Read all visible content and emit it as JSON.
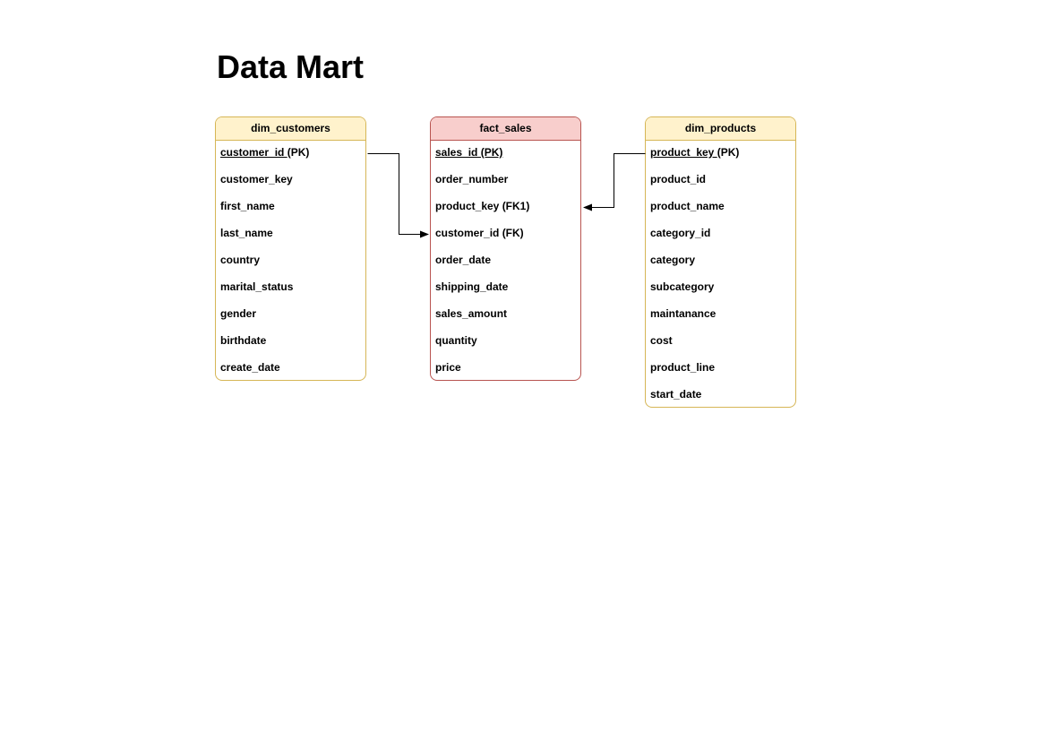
{
  "page": {
    "title": "Data Mart"
  },
  "tables": {
    "dim_customers": {
      "name": "dim_customers",
      "header_fill": "#fff2cc",
      "border_color": "#d6b656",
      "columns": [
        {
          "key": "customer_id ",
          "suffix": "(PK)"
        },
        {
          "key": "",
          "suffix": "customer_key"
        },
        {
          "key": "",
          "suffix": "first_name"
        },
        {
          "key": "",
          "suffix": "last_name"
        },
        {
          "key": "",
          "suffix": "country"
        },
        {
          "key": "",
          "suffix": "marital_status"
        },
        {
          "key": "",
          "suffix": "gender"
        },
        {
          "key": "",
          "suffix": "birthdate"
        },
        {
          "key": "",
          "suffix": "create_date"
        }
      ]
    },
    "fact_sales": {
      "name": "fact_sales",
      "header_fill": "#f8cecc",
      "border_color": "#b85450",
      "columns": [
        {
          "key": "sales_id (PK)",
          "suffix": ""
        },
        {
          "key": "",
          "suffix": "order_number"
        },
        {
          "key": "",
          "suffix": "product_key (FK1)"
        },
        {
          "key": "",
          "suffix": "customer_id (FK)"
        },
        {
          "key": "",
          "suffix": "order_date"
        },
        {
          "key": "",
          "suffix": "shipping_date"
        },
        {
          "key": "",
          "suffix": "sales_amount"
        },
        {
          "key": "",
          "suffix": "quantity"
        },
        {
          "key": "",
          "suffix": "price"
        }
      ]
    },
    "dim_products": {
      "name": "dim_products",
      "header_fill": "#fff2cc",
      "border_color": "#d6b656",
      "columns": [
        {
          "key": "product_key ",
          "suffix": "(PK)"
        },
        {
          "key": "",
          "suffix": "product_id"
        },
        {
          "key": "",
          "suffix": "product_name"
        },
        {
          "key": "",
          "suffix": "category_id"
        },
        {
          "key": "",
          "suffix": "category"
        },
        {
          "key": "",
          "suffix": "subcategory"
        },
        {
          "key": "",
          "suffix": "maintanance"
        },
        {
          "key": "",
          "suffix": "cost"
        },
        {
          "key": "",
          "suffix": "product_line"
        },
        {
          "key": "",
          "suffix": "start_date"
        }
      ]
    }
  },
  "relationships": [
    {
      "from": "dim_customers.customer_id",
      "to": "fact_sales.customer_id",
      "arrow": "to"
    },
    {
      "from": "dim_products.product_key",
      "to": "fact_sales.product_key",
      "arrow": "to"
    }
  ],
  "colors": {
    "connector": "#000000"
  }
}
